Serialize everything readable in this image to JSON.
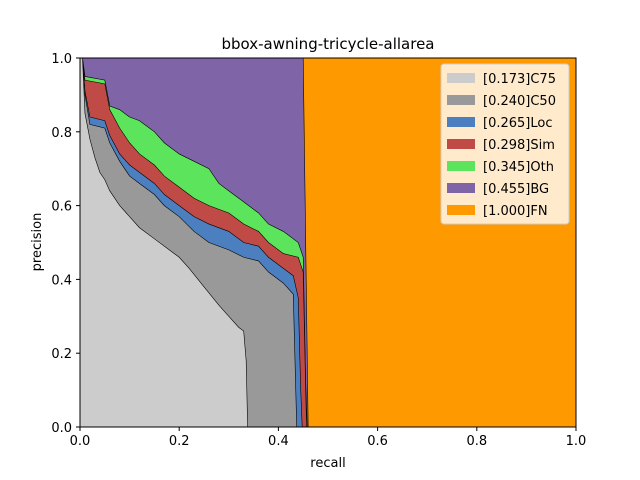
{
  "chart_data": {
    "type": "area",
    "title": "bbox-awning-tricycle-allarea",
    "xlabel": "recall",
    "ylabel": "precision",
    "xlim": [
      0,
      1
    ],
    "ylim": [
      0,
      1
    ],
    "xticks": [
      "0.0",
      "0.2",
      "0.4",
      "0.6",
      "0.8",
      "1.0"
    ],
    "yticks": [
      "0.0",
      "0.2",
      "0.4",
      "0.6",
      "0.8",
      "1.0"
    ],
    "legend_position": "top-right",
    "series": [
      {
        "name": "[0.173]C75",
        "color": "#cccccc",
        "points": [
          [
            0.0,
            1.0
          ],
          [
            0.005,
            1.0
          ],
          [
            0.01,
            0.85
          ],
          [
            0.02,
            0.78
          ],
          [
            0.03,
            0.73
          ],
          [
            0.04,
            0.69
          ],
          [
            0.05,
            0.67
          ],
          [
            0.06,
            0.64
          ],
          [
            0.08,
            0.6
          ],
          [
            0.1,
            0.57
          ],
          [
            0.12,
            0.54
          ],
          [
            0.15,
            0.51
          ],
          [
            0.18,
            0.48
          ],
          [
            0.2,
            0.46
          ],
          [
            0.22,
            0.43
          ],
          [
            0.25,
            0.38
          ],
          [
            0.28,
            0.33
          ],
          [
            0.3,
            0.3
          ],
          [
            0.32,
            0.27
          ],
          [
            0.33,
            0.26
          ],
          [
            0.335,
            0.18
          ],
          [
            0.338,
            0.0
          ]
        ]
      },
      {
        "name": "[0.240]C50",
        "color": "#999999",
        "points": [
          [
            0.0,
            1.0
          ],
          [
            0.005,
            1.0
          ],
          [
            0.01,
            0.9
          ],
          [
            0.02,
            0.82
          ],
          [
            0.05,
            0.81
          ],
          [
            0.06,
            0.77
          ],
          [
            0.08,
            0.72
          ],
          [
            0.1,
            0.68
          ],
          [
            0.12,
            0.66
          ],
          [
            0.15,
            0.63
          ],
          [
            0.17,
            0.6
          ],
          [
            0.2,
            0.57
          ],
          [
            0.23,
            0.53
          ],
          [
            0.26,
            0.5
          ],
          [
            0.3,
            0.48
          ],
          [
            0.33,
            0.46
          ],
          [
            0.36,
            0.45
          ],
          [
            0.38,
            0.42
          ],
          [
            0.41,
            0.39
          ],
          [
            0.43,
            0.36
          ],
          [
            0.435,
            0.1
          ],
          [
            0.437,
            0.0
          ]
        ]
      },
      {
        "name": "[0.265]Loc",
        "color": "#4c7fbf",
        "points": [
          [
            0.0,
            1.0
          ],
          [
            0.005,
            1.0
          ],
          [
            0.01,
            0.91
          ],
          [
            0.02,
            0.84
          ],
          [
            0.05,
            0.83
          ],
          [
            0.06,
            0.79
          ],
          [
            0.08,
            0.74
          ],
          [
            0.1,
            0.71
          ],
          [
            0.12,
            0.69
          ],
          [
            0.15,
            0.66
          ],
          [
            0.17,
            0.63
          ],
          [
            0.2,
            0.6
          ],
          [
            0.23,
            0.57
          ],
          [
            0.26,
            0.55
          ],
          [
            0.3,
            0.53
          ],
          [
            0.33,
            0.5
          ],
          [
            0.36,
            0.49
          ],
          [
            0.38,
            0.46
          ],
          [
            0.41,
            0.43
          ],
          [
            0.43,
            0.41
          ],
          [
            0.44,
            0.35
          ],
          [
            0.445,
            0.1
          ],
          [
            0.448,
            0.0
          ]
        ]
      },
      {
        "name": "[0.298]Sim",
        "color": "#c04b46",
        "points": [
          [
            0.0,
            1.0
          ],
          [
            0.005,
            1.0
          ],
          [
            0.01,
            0.94
          ],
          [
            0.05,
            0.93
          ],
          [
            0.06,
            0.86
          ],
          [
            0.08,
            0.81
          ],
          [
            0.1,
            0.77
          ],
          [
            0.12,
            0.74
          ],
          [
            0.15,
            0.71
          ],
          [
            0.17,
            0.68
          ],
          [
            0.2,
            0.65
          ],
          [
            0.23,
            0.62
          ],
          [
            0.26,
            0.6
          ],
          [
            0.3,
            0.58
          ],
          [
            0.33,
            0.55
          ],
          [
            0.36,
            0.53
          ],
          [
            0.38,
            0.5
          ],
          [
            0.41,
            0.47
          ],
          [
            0.44,
            0.46
          ],
          [
            0.45,
            0.42
          ],
          [
            0.455,
            0.1
          ],
          [
            0.457,
            0.0
          ]
        ]
      },
      {
        "name": "[0.345]Oth",
        "color": "#5ce55c",
        "points": [
          [
            0.0,
            1.0
          ],
          [
            0.005,
            1.0
          ],
          [
            0.01,
            0.95
          ],
          [
            0.05,
            0.94
          ],
          [
            0.06,
            0.87
          ],
          [
            0.08,
            0.86
          ],
          [
            0.1,
            0.84
          ],
          [
            0.12,
            0.83
          ],
          [
            0.15,
            0.8
          ],
          [
            0.17,
            0.77
          ],
          [
            0.2,
            0.74
          ],
          [
            0.23,
            0.72
          ],
          [
            0.26,
            0.7
          ],
          [
            0.28,
            0.66
          ],
          [
            0.3,
            0.64
          ],
          [
            0.33,
            0.61
          ],
          [
            0.36,
            0.58
          ],
          [
            0.38,
            0.55
          ],
          [
            0.41,
            0.53
          ],
          [
            0.44,
            0.5
          ],
          [
            0.45,
            0.46
          ],
          [
            0.455,
            0.12
          ],
          [
            0.458,
            0.0
          ]
        ]
      },
      {
        "name": "[0.455]BG",
        "color": "#7f64a7",
        "points": [
          [
            0.0,
            1.0
          ],
          [
            0.005,
            1.0
          ],
          [
            0.45,
            1.0
          ],
          [
            0.455,
            0.5
          ],
          [
            0.46,
            0.0
          ]
        ]
      },
      {
        "name": "[1.000]FN",
        "color": "#ff9900",
        "points": [
          [
            0.0,
            1.0
          ],
          [
            1.0,
            1.0
          ],
          [
            1.0,
            0.0
          ]
        ]
      }
    ]
  }
}
